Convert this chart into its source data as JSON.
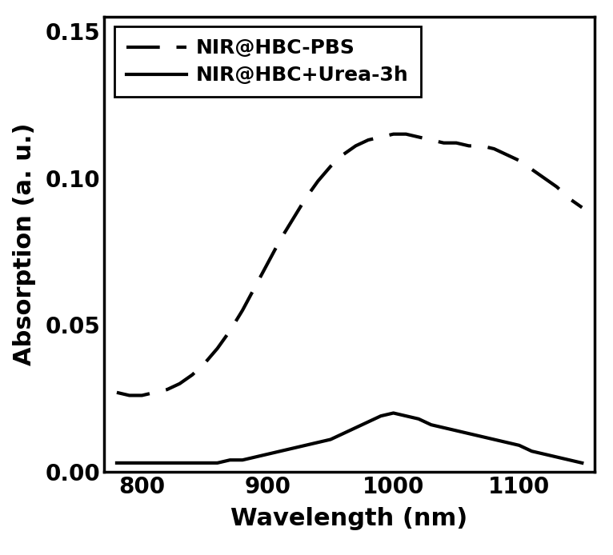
{
  "title": "",
  "xlabel": "Wavelength (nm)",
  "ylabel": "Absorption (a. u.)",
  "xlim": [
    770,
    1160
  ],
  "ylim": [
    0.0,
    0.155
  ],
  "yticks": [
    0.0,
    0.05,
    0.1,
    0.15
  ],
  "xticks": [
    800,
    900,
    1000,
    1100
  ],
  "background_color": "#ffffff",
  "dashed_label": "NIR@HBC-PBS",
  "solid_label": "NIR@HBC+Urea-3h",
  "line_color": "#000000",
  "dashed_x": [
    780,
    790,
    800,
    810,
    820,
    830,
    840,
    850,
    860,
    870,
    880,
    890,
    900,
    910,
    920,
    930,
    940,
    950,
    960,
    970,
    980,
    990,
    1000,
    1010,
    1020,
    1030,
    1040,
    1050,
    1060,
    1070,
    1080,
    1090,
    1100,
    1110,
    1120,
    1130,
    1140,
    1150
  ],
  "dashed_y": [
    0.027,
    0.026,
    0.026,
    0.027,
    0.028,
    0.03,
    0.033,
    0.037,
    0.042,
    0.048,
    0.055,
    0.063,
    0.071,
    0.079,
    0.086,
    0.093,
    0.099,
    0.104,
    0.108,
    0.111,
    0.113,
    0.114,
    0.115,
    0.115,
    0.114,
    0.113,
    0.112,
    0.112,
    0.111,
    0.111,
    0.11,
    0.108,
    0.106,
    0.103,
    0.1,
    0.097,
    0.093,
    0.09
  ],
  "solid_x": [
    780,
    790,
    800,
    810,
    820,
    830,
    840,
    850,
    860,
    870,
    880,
    890,
    900,
    910,
    920,
    930,
    940,
    950,
    960,
    970,
    980,
    990,
    1000,
    1010,
    1020,
    1030,
    1040,
    1050,
    1060,
    1070,
    1080,
    1090,
    1100,
    1110,
    1120,
    1130,
    1140,
    1150
  ],
  "solid_y": [
    0.003,
    0.003,
    0.003,
    0.003,
    0.003,
    0.003,
    0.003,
    0.003,
    0.003,
    0.004,
    0.004,
    0.005,
    0.006,
    0.007,
    0.008,
    0.009,
    0.01,
    0.011,
    0.013,
    0.015,
    0.017,
    0.019,
    0.02,
    0.019,
    0.018,
    0.016,
    0.015,
    0.014,
    0.013,
    0.012,
    0.011,
    0.01,
    0.009,
    0.007,
    0.006,
    0.005,
    0.004,
    0.003
  ],
  "linewidth": 3.0,
  "fontsize_label": 22,
  "fontsize_tick": 20,
  "fontsize_legend": 18,
  "fig_width": 7.66,
  "fig_height": 6.94,
  "dpi": 100
}
